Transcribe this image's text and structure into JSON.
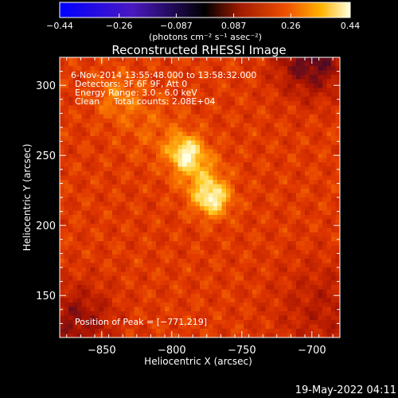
{
  "chart_data": {
    "type": "heatmap",
    "title": "Reconstructed RHESSI Image",
    "xlabel": "Heliocentric X (arcsec)",
    "ylabel": "Heliocentric Y (arcsec)",
    "xlim": [
      -880,
      -680
    ],
    "ylim": [
      120,
      320
    ],
    "x_ticks": [
      -850,
      -800,
      -750,
      -700
    ],
    "y_ticks": [
      150,
      200,
      250,
      300
    ],
    "x_tick_labels": [
      "−850",
      "−800",
      "−750",
      "−700"
    ],
    "y_tick_labels": [
      "150",
      "200",
      "250",
      "300"
    ],
    "colorbar": {
      "min": -0.44,
      "max": 0.44,
      "ticks": [
        -0.44,
        -0.26,
        -0.087,
        0.087,
        0.26,
        0.44
      ],
      "tick_labels": [
        "−0.44",
        "−0.26",
        "−0.087",
        "0.087",
        "0.26",
        "0.44"
      ],
      "unit_label": "(photons cm⁻² s⁻¹ asec⁻²)",
      "colormap": [
        "#0000ff",
        "#5a10c8",
        "#000000",
        "#8c1a00",
        "#e04000",
        "#ffb000",
        "#ffffe0"
      ]
    },
    "annotations": [
      "6-Nov-2014 13:55:48.000 to 13:58:32.000",
      "Detectors: 3F 6F 9F, Att 0",
      "Energy Range: 3.0 - 6.0 keV",
      "Clean     Total counts: 2.08E+04"
    ],
    "peak_label": "Position of Peak = [−771,219]",
    "peak": [
      -771,
      219
    ],
    "sources": [
      {
        "x": -771,
        "y": 219,
        "intensity": 0.44
      },
      {
        "x": -790,
        "y": 252,
        "intensity": 0.4
      },
      {
        "x": -838,
        "y": 292,
        "intensity": 0.18
      }
    ],
    "timestamp": "19-May-2022 04:11"
  }
}
